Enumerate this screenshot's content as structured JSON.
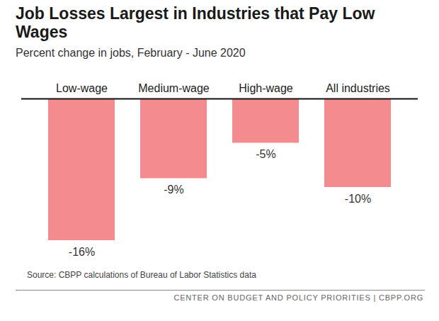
{
  "chart_data": {
    "type": "bar",
    "title": "Job Losses Largest in Industries that Pay Low Wages",
    "subtitle": "Percent change in jobs, February - June 2020",
    "source": "Source: CBPP calculations of Bureau of Labor Statistics data",
    "footer": "CENTER ON BUDGET AND POLICY PRIORITIES | CBPP.ORG",
    "categories": [
      "Low-wage",
      "Medium-wage",
      "High-wage",
      "All industries"
    ],
    "values": [
      -16,
      -9,
      -5,
      -10
    ],
    "value_labels": [
      "-16%",
      "-9%",
      "-5%",
      "-10%"
    ],
    "color": "#f48b8e",
    "ylim": [
      -16,
      0
    ],
    "yticks": [
      0
    ],
    "grid": false,
    "data_labels": true,
    "tick_labels": "x"
  }
}
